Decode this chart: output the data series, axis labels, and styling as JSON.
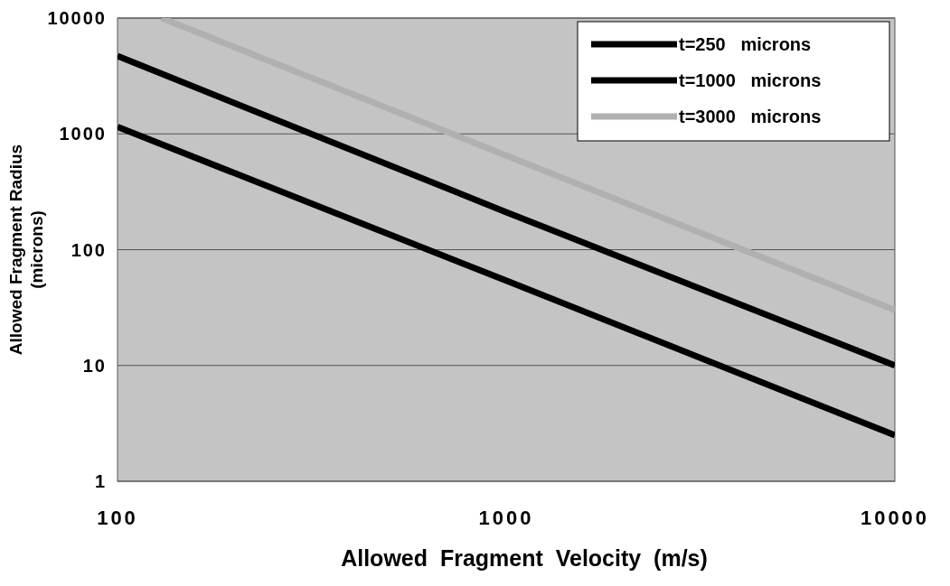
{
  "chart_data": {
    "type": "line",
    "xlabel": "Allowed  Fragment  Velocity  (m/s)",
    "ylabel": "Allowed Fragment Radius\n(microns)",
    "log": "xy",
    "xlim": [
      100,
      10000
    ],
    "ylim": [
      1,
      10000
    ],
    "xticks": [
      100,
      1000,
      10000
    ],
    "yticks": [
      1,
      10,
      100,
      1000,
      10000
    ],
    "grid": "y",
    "legend": "top right",
    "line_style": "solid",
    "series": [
      {
        "name": "t=250   microns",
        "color": "#000000",
        "x": [
          100,
          1000,
          10000
        ],
        "values": [
          1150,
          54,
          2.5
        ]
      },
      {
        "name": "t=1000   microns",
        "color": "#000000",
        "x": [
          100,
          1000,
          10000
        ],
        "values": [
          4700,
          211,
          10
        ]
      },
      {
        "name": "t=3000   microns",
        "color": "#b0b0b0",
        "x": [
          130,
          1000,
          10000
        ],
        "values": [
          10000,
          650,
          30
        ]
      }
    ]
  }
}
